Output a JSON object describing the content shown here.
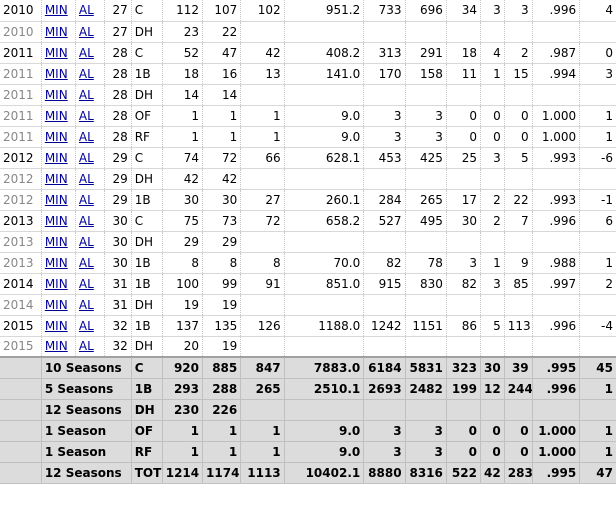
{
  "rows": [
    {
      "year": "2010",
      "minor": false,
      "tm": "MIN",
      "lg": "AL",
      "age": "27",
      "pos": "C",
      "g": "112",
      "gs": "107",
      "cg": "102",
      "inn": "951.2",
      "ch": "733",
      "po": "696",
      "a": "34",
      "e": "3",
      "dp": "3",
      "fld": ".996",
      "rtot": "4"
    },
    {
      "year": "2010",
      "minor": true,
      "tm": "MIN",
      "lg": "AL",
      "age": "27",
      "pos": "DH",
      "g": "23",
      "gs": "22",
      "cg": "",
      "inn": "",
      "ch": "",
      "po": "",
      "a": "",
      "e": "",
      "dp": "",
      "fld": "",
      "rtot": ""
    },
    {
      "year": "2011",
      "minor": false,
      "tm": "MIN",
      "lg": "AL",
      "age": "28",
      "pos": "C",
      "g": "52",
      "gs": "47",
      "cg": "42",
      "inn": "408.2",
      "ch": "313",
      "po": "291",
      "a": "18",
      "e": "4",
      "dp": "2",
      "fld": ".987",
      "rtot": "0"
    },
    {
      "year": "2011",
      "minor": true,
      "tm": "MIN",
      "lg": "AL",
      "age": "28",
      "pos": "1B",
      "g": "18",
      "gs": "16",
      "cg": "13",
      "inn": "141.0",
      "ch": "170",
      "po": "158",
      "a": "11",
      "e": "1",
      "dp": "15",
      "fld": ".994",
      "rtot": "3"
    },
    {
      "year": "2011",
      "minor": true,
      "tm": "MIN",
      "lg": "AL",
      "age": "28",
      "pos": "DH",
      "g": "14",
      "gs": "14",
      "cg": "",
      "inn": "",
      "ch": "",
      "po": "",
      "a": "",
      "e": "",
      "dp": "",
      "fld": "",
      "rtot": ""
    },
    {
      "year": "2011",
      "minor": true,
      "tm": "MIN",
      "lg": "AL",
      "age": "28",
      "pos": "OF",
      "g": "1",
      "gs": "1",
      "cg": "1",
      "inn": "9.0",
      "ch": "3",
      "po": "3",
      "a": "0",
      "e": "0",
      "dp": "0",
      "fld": "1.000",
      "rtot": "1"
    },
    {
      "year": "2011",
      "minor": true,
      "tm": "MIN",
      "lg": "AL",
      "age": "28",
      "pos": "RF",
      "g": "1",
      "gs": "1",
      "cg": "1",
      "inn": "9.0",
      "ch": "3",
      "po": "3",
      "a": "0",
      "e": "0",
      "dp": "0",
      "fld": "1.000",
      "rtot": "1"
    },
    {
      "year": "2012",
      "minor": false,
      "tm": "MIN",
      "lg": "AL",
      "age": "29",
      "pos": "C",
      "g": "74",
      "gs": "72",
      "cg": "66",
      "inn": "628.1",
      "ch": "453",
      "po": "425",
      "a": "25",
      "e": "3",
      "dp": "5",
      "fld": ".993",
      "rtot": "-6"
    },
    {
      "year": "2012",
      "minor": true,
      "tm": "MIN",
      "lg": "AL",
      "age": "29",
      "pos": "DH",
      "g": "42",
      "gs": "42",
      "cg": "",
      "inn": "",
      "ch": "",
      "po": "",
      "a": "",
      "e": "",
      "dp": "",
      "fld": "",
      "rtot": ""
    },
    {
      "year": "2012",
      "minor": true,
      "tm": "MIN",
      "lg": "AL",
      "age": "29",
      "pos": "1B",
      "g": "30",
      "gs": "30",
      "cg": "27",
      "inn": "260.1",
      "ch": "284",
      "po": "265",
      "a": "17",
      "e": "2",
      "dp": "22",
      "fld": ".993",
      "rtot": "-1"
    },
    {
      "year": "2013",
      "minor": false,
      "tm": "MIN",
      "lg": "AL",
      "age": "30",
      "pos": "C",
      "g": "75",
      "gs": "73",
      "cg": "72",
      "inn": "658.2",
      "ch": "527",
      "po": "495",
      "a": "30",
      "e": "2",
      "dp": "7",
      "fld": ".996",
      "rtot": "6"
    },
    {
      "year": "2013",
      "minor": true,
      "tm": "MIN",
      "lg": "AL",
      "age": "30",
      "pos": "DH",
      "g": "29",
      "gs": "29",
      "cg": "",
      "inn": "",
      "ch": "",
      "po": "",
      "a": "",
      "e": "",
      "dp": "",
      "fld": "",
      "rtot": ""
    },
    {
      "year": "2013",
      "minor": true,
      "tm": "MIN",
      "lg": "AL",
      "age": "30",
      "pos": "1B",
      "g": "8",
      "gs": "8",
      "cg": "8",
      "inn": "70.0",
      "ch": "82",
      "po": "78",
      "a": "3",
      "e": "1",
      "dp": "9",
      "fld": ".988",
      "rtot": "1"
    },
    {
      "year": "2014",
      "minor": false,
      "tm": "MIN",
      "lg": "AL",
      "age": "31",
      "pos": "1B",
      "g": "100",
      "gs": "99",
      "cg": "91",
      "inn": "851.0",
      "ch": "915",
      "po": "830",
      "a": "82",
      "e": "3",
      "dp": "85",
      "fld": ".997",
      "rtot": "2"
    },
    {
      "year": "2014",
      "minor": true,
      "tm": "MIN",
      "lg": "AL",
      "age": "31",
      "pos": "DH",
      "g": "19",
      "gs": "19",
      "cg": "",
      "inn": "",
      "ch": "",
      "po": "",
      "a": "",
      "e": "",
      "dp": "",
      "fld": "",
      "rtot": ""
    },
    {
      "year": "2015",
      "minor": false,
      "tm": "MIN",
      "lg": "AL",
      "age": "32",
      "pos": "1B",
      "g": "137",
      "gs": "135",
      "cg": "126",
      "inn": "1188.0",
      "ch": "1242",
      "po": "1151",
      "a": "86",
      "e": "5",
      "dp": "113",
      "fld": ".996",
      "rtot": "-4"
    },
    {
      "year": "2015",
      "minor": true,
      "tm": "MIN",
      "lg": "AL",
      "age": "32",
      "pos": "DH",
      "g": "20",
      "gs": "19",
      "cg": "",
      "inn": "",
      "ch": "",
      "po": "",
      "a": "",
      "e": "",
      "dp": "",
      "fld": "",
      "rtot": ""
    }
  ],
  "totals": [
    {
      "label": "10 Seasons",
      "pos": "C",
      "g": "920",
      "gs": "885",
      "cg": "847",
      "inn": "7883.0",
      "ch": "6184",
      "po": "5831",
      "a": "323",
      "e": "30",
      "dp": "39",
      "fld": ".995",
      "rtot": "45"
    },
    {
      "label": "5 Seasons",
      "pos": "1B",
      "g": "293",
      "gs": "288",
      "cg": "265",
      "inn": "2510.1",
      "ch": "2693",
      "po": "2482",
      "a": "199",
      "e": "12",
      "dp": "244",
      "fld": ".996",
      "rtot": "1"
    },
    {
      "label": "12 Seasons",
      "pos": "DH",
      "g": "230",
      "gs": "226",
      "cg": "",
      "inn": "",
      "ch": "",
      "po": "",
      "a": "",
      "e": "",
      "dp": "",
      "fld": "",
      "rtot": ""
    },
    {
      "label": "1 Season",
      "pos": "OF",
      "g": "1",
      "gs": "1",
      "cg": "1",
      "inn": "9.0",
      "ch": "3",
      "po": "3",
      "a": "0",
      "e": "0",
      "dp": "0",
      "fld": "1.000",
      "rtot": "1"
    },
    {
      "label": "1 Season",
      "pos": "RF",
      "g": "1",
      "gs": "1",
      "cg": "1",
      "inn": "9.0",
      "ch": "3",
      "po": "3",
      "a": "0",
      "e": "0",
      "dp": "0",
      "fld": "1.000",
      "rtot": "1"
    },
    {
      "label": "12 Seasons",
      "pos": "TOT",
      "g": "1214",
      "gs": "1174",
      "cg": "1113",
      "inn": "10402.1",
      "ch": "8880",
      "po": "8316",
      "a": "522",
      "e": "42",
      "dp": "283",
      "fld": ".995",
      "rtot": "47"
    }
  ]
}
